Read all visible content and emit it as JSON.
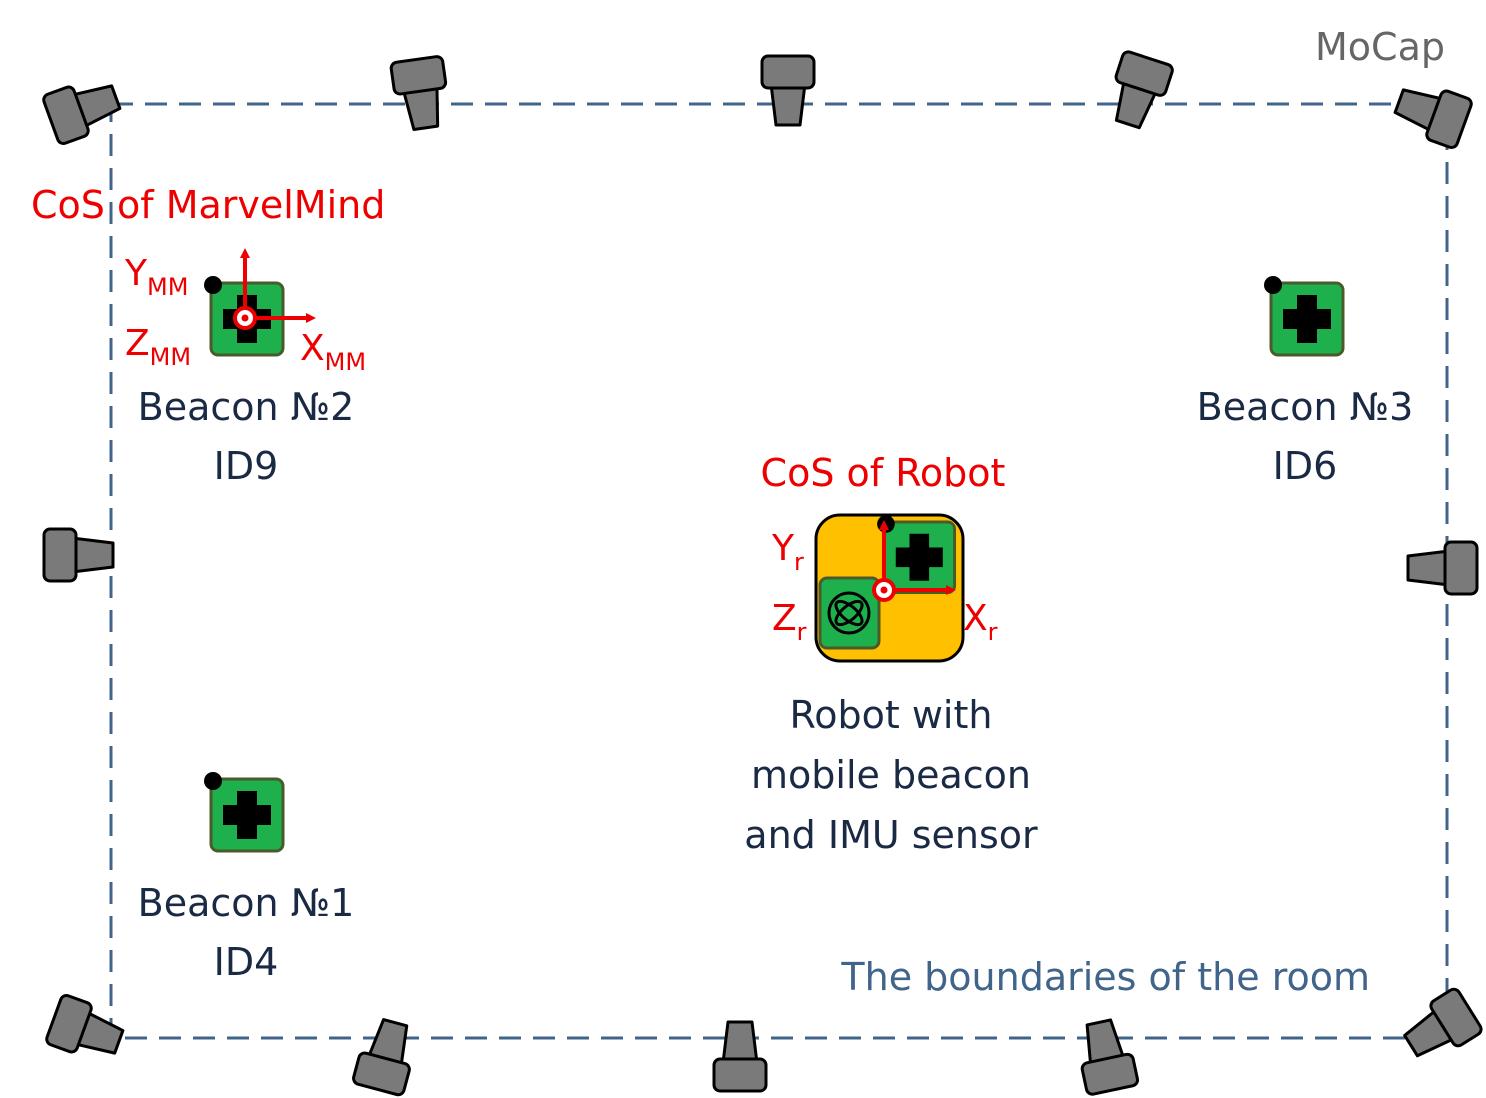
{
  "mocap_label": "MoCap",
  "room_label": "The boundaries of the room",
  "marvelmind": {
    "title": "CoS of MarvelMind",
    "axis_y": "Y",
    "axis_y_sub": "MM",
    "axis_z": "Z",
    "axis_z_sub": "MM",
    "axis_x": "X",
    "axis_x_sub": "MM"
  },
  "robot": {
    "title": "CoS of Robot",
    "axis_y": "Y",
    "axis_y_sub": "r",
    "axis_z": "Z",
    "axis_z_sub": "r",
    "axis_x": "X",
    "axis_x_sub": "r",
    "caption": [
      "Robot with",
      "mobile beacon",
      "and IMU sensor"
    ]
  },
  "beacons": [
    {
      "name": "Beacon №2",
      "id": "ID9"
    },
    {
      "name": "Beacon №3",
      "id": "ID6"
    },
    {
      "name": "Beacon №1",
      "id": "ID4"
    }
  ],
  "colors": {
    "boundary": "#41648a",
    "label_dark": "#1a2a45",
    "accent_red": "#ee0000",
    "beacon_green": "#1eb04c",
    "robot_yellow": "#ffc000",
    "camera_gray": "#7a7a7a",
    "mocap_gray": "#666666"
  }
}
